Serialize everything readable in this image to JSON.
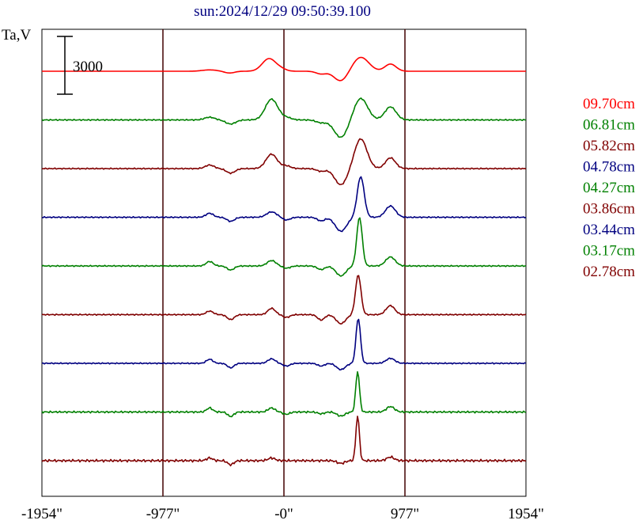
{
  "chart_data": {
    "type": "line",
    "title": "sun:2024/12/29 09:50:39.100",
    "ylabel": "Ta,V",
    "scale_bar_label": "3000",
    "xlim": [
      -1954,
      1954
    ],
    "x_ticks": [
      {
        "value": -1954,
        "label": "-1954\""
      },
      {
        "value": -977,
        "label": "-977\""
      },
      {
        "value": 0,
        "label": "-0\""
      },
      {
        "value": 977,
        "label": "977\""
      },
      {
        "value": 1954,
        "label": "1954\""
      }
    ],
    "vertical_grid": [
      -977,
      0,
      977
    ],
    "legend_position": "right",
    "series": [
      {
        "name": "09.70cm",
        "color": "#ff0000",
        "noise": 0.0,
        "features": [
          [
            -600,
            0.3,
            60
          ],
          [
            -440,
            -0.4,
            40
          ],
          [
            -120,
            2.8,
            55
          ],
          [
            -20,
            0.4,
            40
          ],
          [
            300,
            -0.6,
            40
          ],
          [
            460,
            -2.2,
            55
          ],
          [
            620,
            3.1,
            65
          ],
          [
            860,
            1.6,
            45
          ]
        ]
      },
      {
        "name": "06.81cm",
        "color": "#008000",
        "noise": 0.15,
        "features": [
          [
            -600,
            0.6,
            40
          ],
          [
            -430,
            -0.9,
            40
          ],
          [
            -100,
            4.6,
            50
          ],
          [
            20,
            0.5,
            40
          ],
          [
            300,
            -0.6,
            40
          ],
          [
            460,
            -3.9,
            55
          ],
          [
            620,
            4.8,
            55
          ],
          [
            860,
            2.9,
            45
          ]
        ]
      },
      {
        "name": "05.82cm",
        "color": "#800000",
        "noise": 0.15,
        "features": [
          [
            -600,
            0.8,
            35
          ],
          [
            -430,
            -1.0,
            35
          ],
          [
            -100,
            3.2,
            45
          ],
          [
            20,
            0.6,
            35
          ],
          [
            300,
            -0.6,
            35
          ],
          [
            460,
            -3.6,
            50
          ],
          [
            620,
            6.6,
            50
          ],
          [
            860,
            2.4,
            40
          ]
        ]
      },
      {
        "name": "04.78cm",
        "color": "#000080",
        "noise": 0.15,
        "features": [
          [
            -600,
            0.9,
            30
          ],
          [
            -430,
            -0.9,
            30
          ],
          [
            -100,
            1.2,
            40
          ],
          [
            20,
            -0.6,
            30
          ],
          [
            300,
            -0.8,
            30
          ],
          [
            460,
            -3.1,
            45
          ],
          [
            620,
            9.0,
            28
          ],
          [
            860,
            2.5,
            40
          ]
        ]
      },
      {
        "name": "04.27cm",
        "color": "#008000",
        "noise": 0.15,
        "features": [
          [
            -600,
            1.0,
            28
          ],
          [
            -430,
            -0.9,
            28
          ],
          [
            -100,
            1.2,
            35
          ],
          [
            20,
            -0.5,
            30
          ],
          [
            300,
            -0.8,
            30
          ],
          [
            460,
            -2.2,
            40
          ],
          [
            610,
            10.8,
            22
          ],
          [
            860,
            2.0,
            38
          ]
        ]
      },
      {
        "name": "03.86cm",
        "color": "#800000",
        "noise": 0.15,
        "features": [
          [
            -600,
            0.8,
            28
          ],
          [
            -430,
            -1.1,
            28
          ],
          [
            -100,
            1.4,
            30
          ],
          [
            20,
            -0.6,
            28
          ],
          [
            300,
            -1.2,
            28
          ],
          [
            460,
            -2.0,
            38
          ],
          [
            600,
            8.8,
            22
          ],
          [
            860,
            2.0,
            35
          ]
        ]
      },
      {
        "name": "03.44cm",
        "color": "#000080",
        "noise": 0.15,
        "features": [
          [
            -600,
            0.9,
            26
          ],
          [
            -430,
            -1.0,
            26
          ],
          [
            -100,
            1.0,
            30
          ],
          [
            20,
            -0.6,
            28
          ],
          [
            300,
            -0.6,
            28
          ],
          [
            460,
            -1.4,
            35
          ],
          [
            600,
            10.0,
            18
          ],
          [
            860,
            1.1,
            35
          ]
        ]
      },
      {
        "name": "03.17cm",
        "color": "#008000",
        "noise": 0.22,
        "features": [
          [
            -600,
            0.9,
            24
          ],
          [
            -430,
            -1.0,
            24
          ],
          [
            -100,
            0.9,
            28
          ],
          [
            20,
            -0.5,
            26
          ],
          [
            300,
            -0.4,
            26
          ],
          [
            460,
            -0.9,
            32
          ],
          [
            595,
            9.0,
            15
          ],
          [
            860,
            1.2,
            32
          ]
        ]
      },
      {
        "name": "02.78cm",
        "color": "#800000",
        "noise": 0.3,
        "features": [
          [
            -600,
            0.6,
            24
          ],
          [
            -430,
            -0.9,
            24
          ],
          [
            -100,
            0.6,
            28
          ],
          [
            460,
            -0.6,
            30
          ],
          [
            595,
            10.0,
            14
          ],
          [
            860,
            0.8,
            30
          ]
        ]
      }
    ]
  }
}
